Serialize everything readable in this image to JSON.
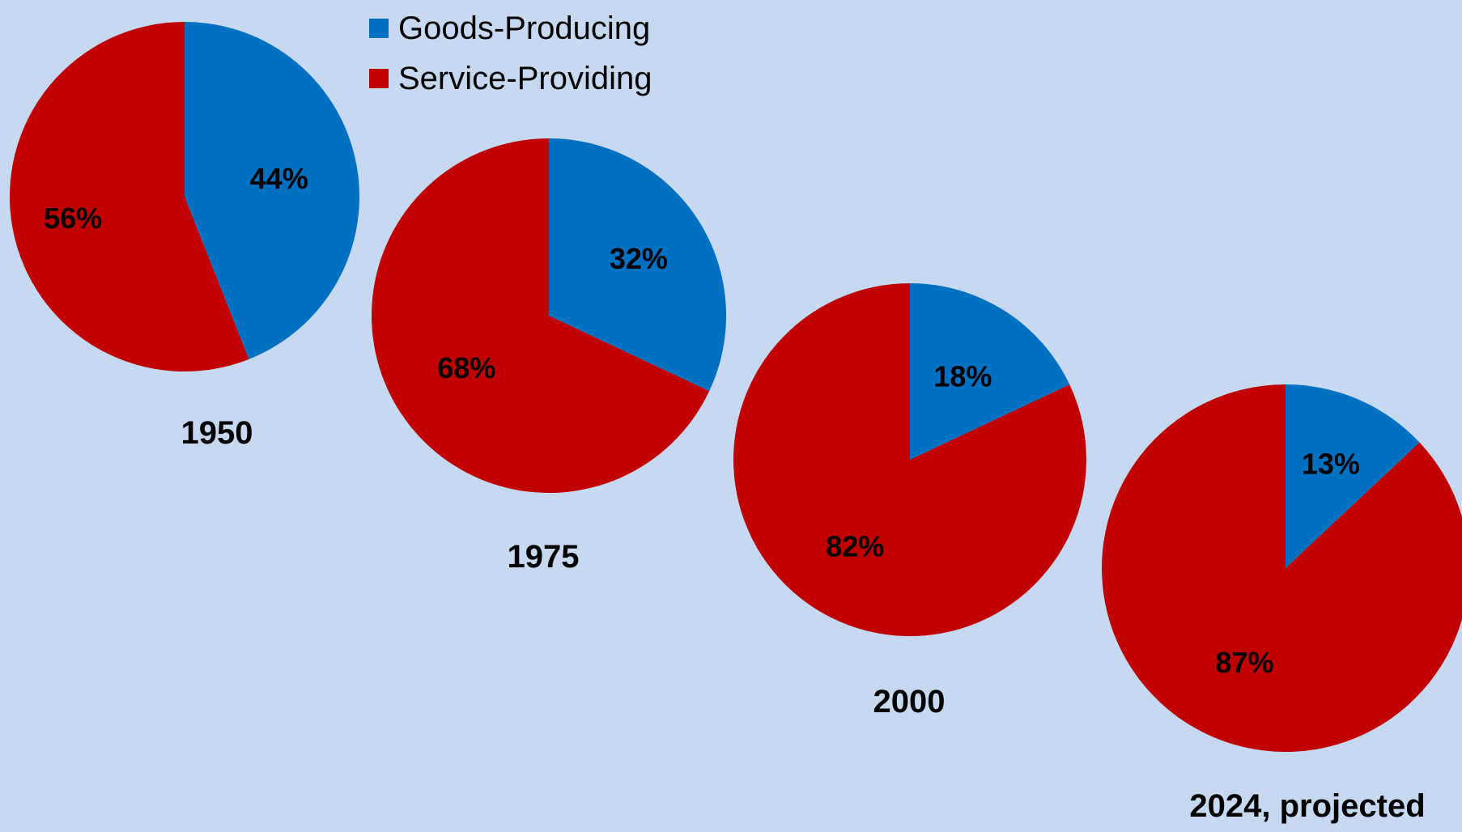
{
  "legend": {
    "items": [
      {
        "label": "Goods-Producing",
        "color": "#0070c0"
      },
      {
        "label": "Service-Providing",
        "color": "#c00000"
      }
    ]
  },
  "chart_data": {
    "type": "pie",
    "series_names": [
      "Goods-Producing",
      "Service-Providing"
    ],
    "colors": [
      "#0070c0",
      "#c00000"
    ],
    "charts": [
      {
        "title": "1950",
        "values": [
          44,
          56
        ],
        "labels": [
          "44%",
          "56%"
        ]
      },
      {
        "title": "1975",
        "values": [
          32,
          68
        ],
        "labels": [
          "32%",
          "68%"
        ]
      },
      {
        "title": "2000",
        "values": [
          18,
          82
        ],
        "labels": [
          "18%",
          "82%"
        ]
      },
      {
        "title": "2024, projected",
        "values": [
          13,
          87
        ],
        "labels": [
          "13%",
          "87%"
        ]
      }
    ]
  }
}
